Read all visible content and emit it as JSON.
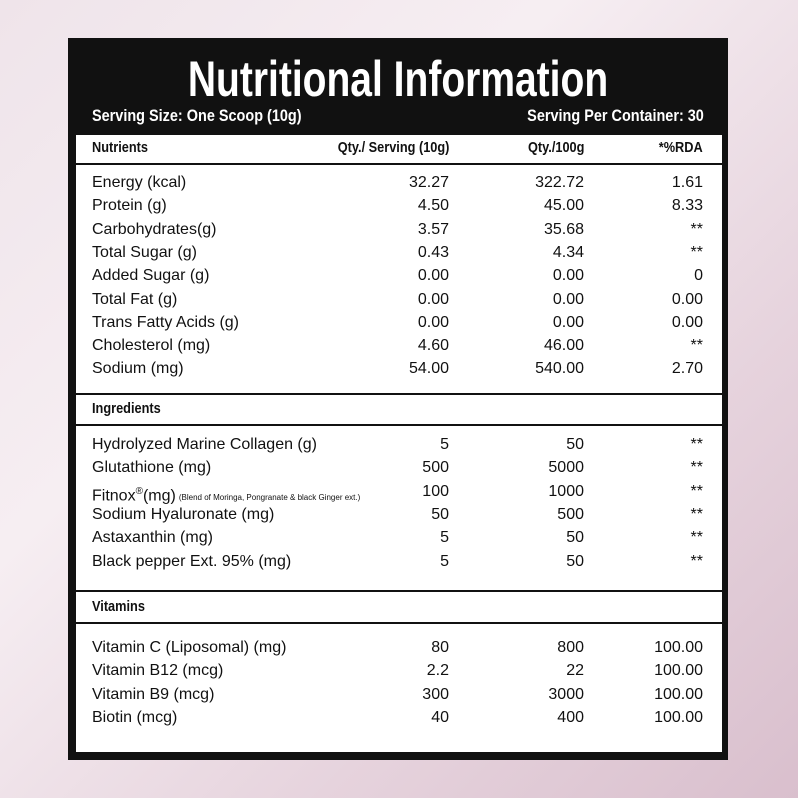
{
  "header": {
    "title": "Nutritional Information",
    "serving_size": "Serving Size: One Scoop (10g)",
    "servings_per_container": "Serving Per Container: 30"
  },
  "table": {
    "columns": [
      "Nutrients",
      "Qty./ Serving (10g)",
      "Qty./100g",
      "*%RDA"
    ],
    "sections": [
      {
        "rows": [
          [
            "Energy (kcal)",
            "32.27",
            "322.72",
            "1.61"
          ],
          [
            "Protein (g)",
            "4.50",
            "45.00",
            "8.33"
          ],
          [
            "Carbohydrates(g)",
            "3.57",
            "35.68",
            "**"
          ],
          [
            "Total Sugar (g)",
            "0.43",
            "4.34",
            "**"
          ],
          [
            "Added Sugar (g)",
            "0.00",
            "0.00",
            "0"
          ],
          [
            "Total Fat (g)",
            "0.00",
            "0.00",
            "0.00"
          ],
          [
            "Trans Fatty Acids (g)",
            "0.00",
            "0.00",
            "0.00"
          ],
          [
            "Cholesterol (mg)",
            "4.60",
            "46.00",
            "**"
          ],
          [
            "Sodium (mg)",
            "54.00",
            "540.00",
            "2.70"
          ]
        ]
      },
      {
        "heading": "Ingredients",
        "rows": [
          [
            "Hydrolyzed Marine Collagen (g)",
            "5",
            "50",
            "**"
          ],
          [
            "Glutathione (mg)",
            "500",
            "5000",
            "**"
          ],
          [
            {
              "text": "Fitnox",
              "sup": "®",
              "unit": "(mg)",
              "note": "(Blend of Moringa, Pongranate & black Ginger ext.)"
            },
            "100",
            "1000",
            "**"
          ],
          [
            "Sodium Hyaluronate (mg)",
            "50",
            "500",
            "**"
          ],
          [
            "Astaxanthin (mg)",
            "5",
            "50",
            "**"
          ],
          [
            "Black pepper Ext. 95% (mg)",
            "5",
            "50",
            "**"
          ]
        ]
      },
      {
        "heading": "Vitamins",
        "rows": [
          [
            "Vitamin C (Liposomal) (mg)",
            "80",
            "800",
            "100.00"
          ],
          [
            "Vitamin B12 (mcg)",
            "2.2",
            "22",
            "100.00"
          ],
          [
            "Vitamin B9 (mcg)",
            "300",
            "3000",
            "100.00"
          ],
          [
            "Biotin (mcg)",
            "40",
            "400",
            "100.00"
          ]
        ]
      }
    ]
  }
}
